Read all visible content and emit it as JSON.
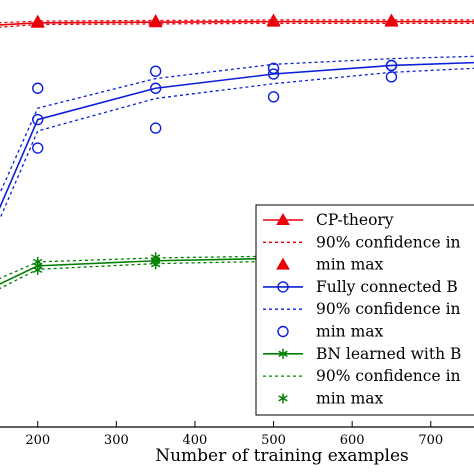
{
  "chart_data": {
    "type": "line",
    "xlabel": "Number of training examples",
    "ylabel": "",
    "title": "",
    "xlim": [
      152,
      755
    ],
    "ylim": [
      0.25,
      1.0
    ],
    "x_ticks": [
      200,
      300,
      400,
      500,
      600,
      700
    ],
    "grid": false,
    "legend_position": "lower-right",
    "series": [
      {
        "name": "CP-theory",
        "color": "#e8000b",
        "marker": "triangle",
        "x": [
          150,
          200,
          350,
          500,
          650,
          755
        ],
        "y": [
          0.956,
          0.96,
          0.961,
          0.962,
          0.962,
          0.962
        ],
        "ci_lower": [
          0.952,
          0.957,
          0.958,
          0.959,
          0.959,
          0.959
        ],
        "ci_upper": [
          0.96,
          0.963,
          0.964,
          0.965,
          0.965,
          0.965
        ],
        "min_max": [
          [
            200,
            0.962
          ],
          [
            350,
            0.963
          ],
          [
            500,
            0.964
          ],
          [
            650,
            0.964
          ]
        ]
      },
      {
        "name": "Fully connected B",
        "color": "#0a1fd9",
        "marker": "circle",
        "x": [
          150,
          200,
          350,
          500,
          650,
          755
        ],
        "y": [
          0.63,
          0.79,
          0.845,
          0.87,
          0.885,
          0.89
        ],
        "ci_lower": [
          0.61,
          0.77,
          0.827,
          0.853,
          0.873,
          0.88
        ],
        "ci_upper": [
          0.655,
          0.81,
          0.862,
          0.887,
          0.897,
          0.901
        ],
        "min_max": [
          [
            200,
            0.845
          ],
          [
            200,
            0.74
          ],
          [
            350,
            0.875
          ],
          [
            350,
            0.775
          ],
          [
            500,
            0.88
          ],
          [
            500,
            0.83
          ],
          [
            650,
            0.885
          ],
          [
            650,
            0.865
          ]
        ]
      },
      {
        "name": "BN learned with B",
        "color": "#008000",
        "marker": "star",
        "x": [
          150,
          200,
          350,
          500,
          650,
          755
        ],
        "y": [
          0.5,
          0.533,
          0.542,
          0.546,
          0.546,
          0.547
        ],
        "ci_lower": [
          0.492,
          0.527,
          0.537,
          0.541,
          0.542,
          0.543
        ],
        "ci_upper": [
          0.51,
          0.54,
          0.547,
          0.55,
          0.55,
          0.551
        ],
        "min_max": [
          [
            200,
            0.54
          ],
          [
            200,
            0.526
          ],
          [
            350,
            0.548
          ],
          [
            350,
            0.536
          ],
          [
            500,
            0.55
          ],
          [
            500,
            0.544
          ],
          [
            650,
            0.55
          ],
          [
            650,
            0.546
          ]
        ]
      }
    ],
    "legend": [
      {
        "label": "CP-theory",
        "series": 0,
        "kind": "line"
      },
      {
        "label": "90% confidence in",
        "series": 0,
        "kind": "ci"
      },
      {
        "label": "min max",
        "series": 0,
        "kind": "minmax"
      },
      {
        "label": "Fully connected B",
        "series": 1,
        "kind": "line"
      },
      {
        "label": "90% confidence in",
        "series": 1,
        "kind": "ci"
      },
      {
        "label": "min max",
        "series": 1,
        "kind": "minmax"
      },
      {
        "label": "BN learned with B",
        "series": 2,
        "kind": "line"
      },
      {
        "label": "90% confidence in",
        "series": 2,
        "kind": "ci"
      },
      {
        "label": "min max",
        "series": 2,
        "kind": "minmax"
      }
    ]
  }
}
